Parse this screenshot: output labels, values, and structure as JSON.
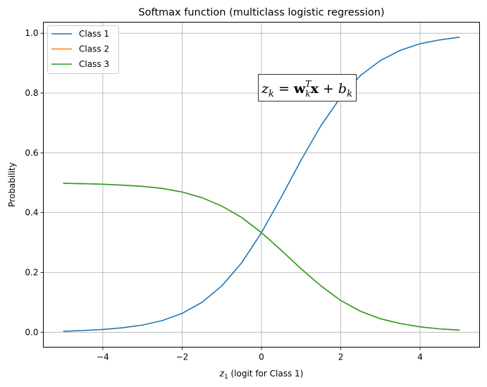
{
  "chart_data": {
    "type": "line",
    "title": "Softmax function (multiclass logistic regression)",
    "xlabel_main": "z",
    "xlabel_sub": "1",
    "xlabel_rest": " (logit for Class 1)",
    "ylabel": "Probability",
    "xlim": [
      -5.5,
      5.5
    ],
    "ylim": [
      -0.05,
      1.037
    ],
    "xticks": [
      -4,
      -2,
      0,
      2,
      4
    ],
    "xtick_labels": [
      "−4",
      "−2",
      "0",
      "2",
      "4"
    ],
    "yticks": [
      0.0,
      0.2,
      0.4,
      0.6,
      0.8,
      1.0
    ],
    "ytick_labels": [
      "0.0",
      "0.2",
      "0.4",
      "0.6",
      "0.8",
      "1.0"
    ],
    "grid": true,
    "legend_position": "top-left",
    "x": [
      -5,
      -4.5,
      -4,
      -3.5,
      -3,
      -2.5,
      -2,
      -1.5,
      -1,
      -0.5,
      0,
      0.5,
      1,
      1.5,
      2,
      2.5,
      3,
      3.5,
      4,
      4.5,
      5
    ],
    "series": [
      {
        "name": "Class 1",
        "color": "#1f77b4",
        "values": [
          0.003,
          0.006,
          0.009,
          0.015,
          0.024,
          0.039,
          0.063,
          0.1,
          0.155,
          0.232,
          0.333,
          0.452,
          0.576,
          0.691,
          0.787,
          0.859,
          0.909,
          0.943,
          0.965,
          0.978,
          0.987
        ]
      },
      {
        "name": "Class 2",
        "color": "#ff7f0e",
        "values": [
          0.498,
          0.497,
          0.495,
          0.492,
          0.488,
          0.481,
          0.469,
          0.45,
          0.422,
          0.384,
          0.333,
          0.274,
          0.212,
          0.155,
          0.106,
          0.07,
          0.045,
          0.029,
          0.018,
          0.011,
          0.007
        ]
      },
      {
        "name": "Class 3",
        "color": "#2ca02c",
        "values": [
          0.498,
          0.497,
          0.495,
          0.492,
          0.488,
          0.481,
          0.469,
          0.45,
          0.422,
          0.384,
          0.333,
          0.274,
          0.212,
          0.155,
          0.106,
          0.07,
          0.045,
          0.029,
          0.018,
          0.011,
          0.007
        ]
      }
    ],
    "annotation": {
      "z": "z",
      "k": "k",
      "eq": " = ",
      "w": "w",
      "T": "T",
      "x": "x",
      "plus": " + ",
      "b": "b",
      "at": [
        0.8,
        0.8
      ]
    }
  }
}
